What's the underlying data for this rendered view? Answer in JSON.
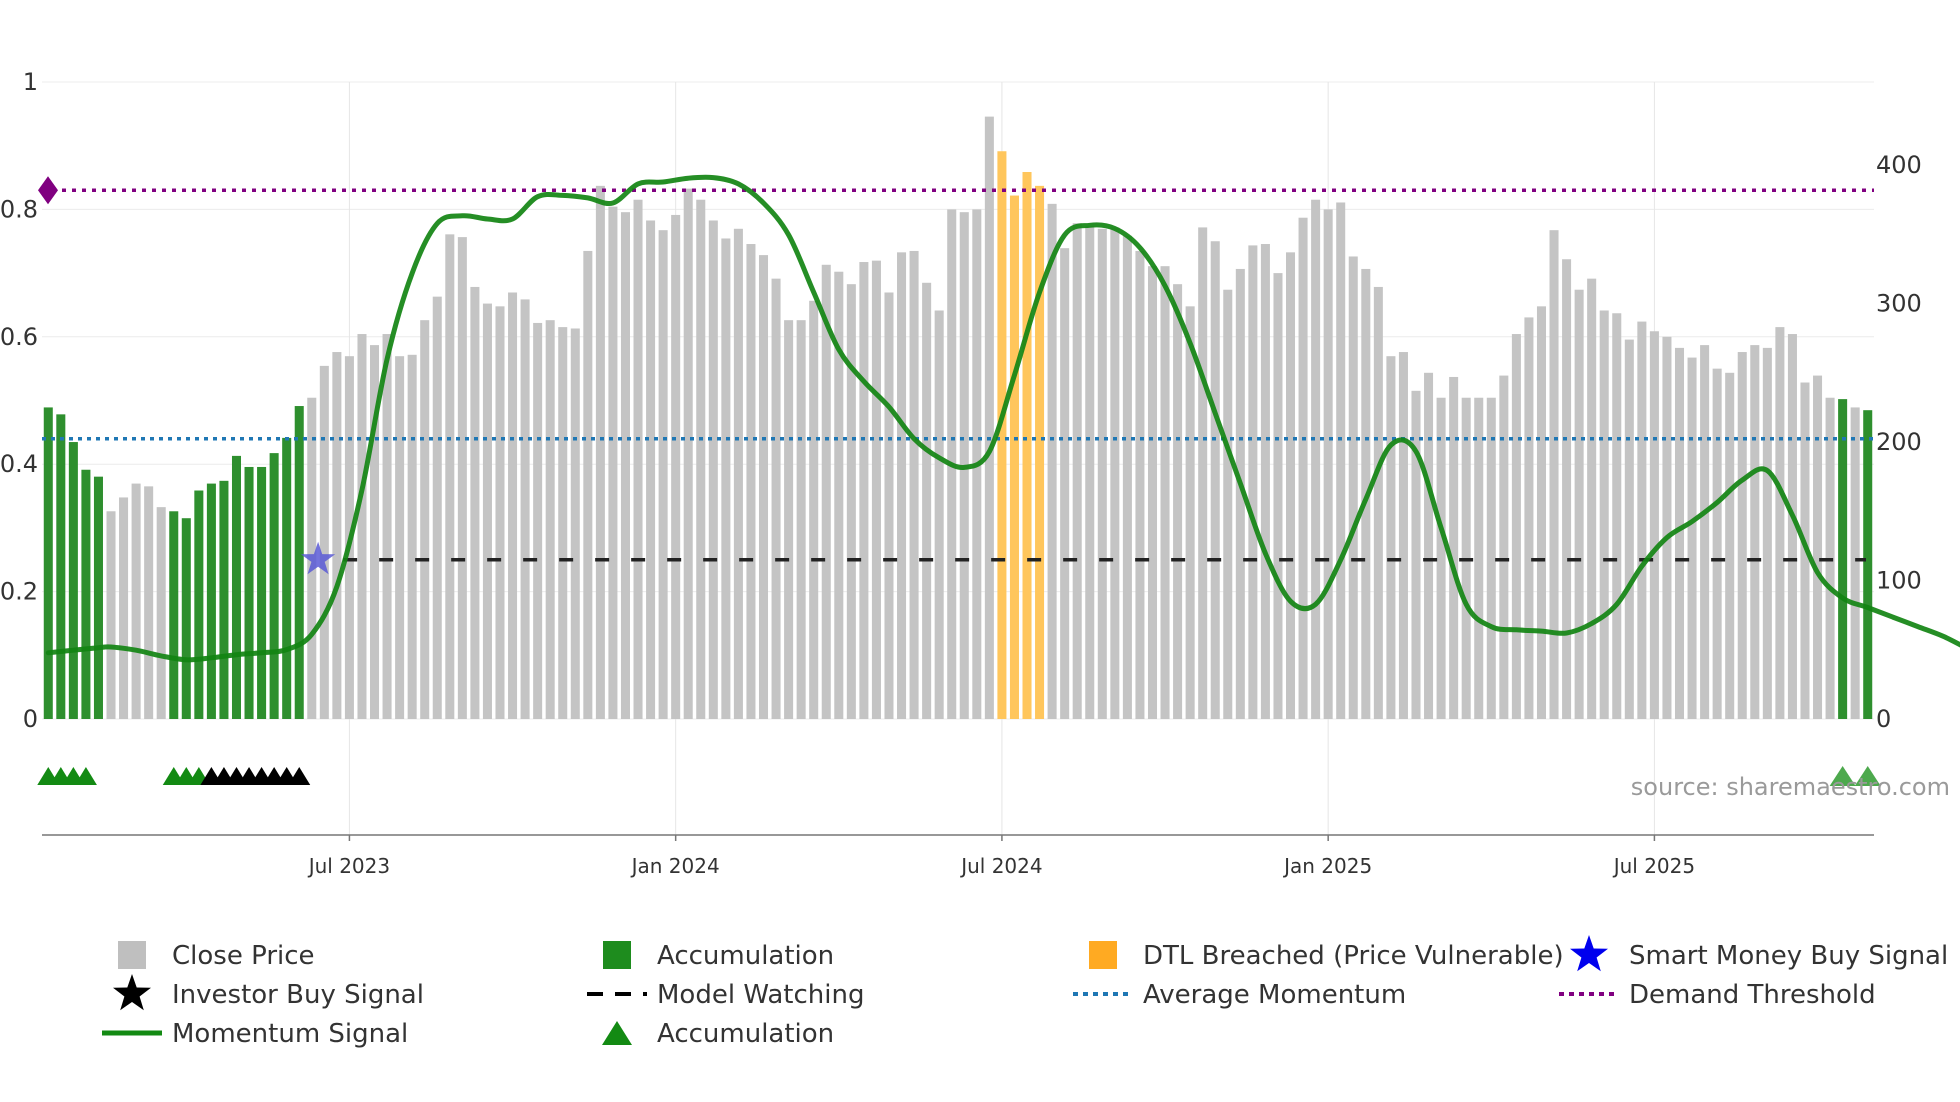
{
  "chart_data": {
    "type": "bar",
    "title": "",
    "source_text": "source: sharemaestro.com",
    "left_axis": {
      "ticks": [
        0,
        0.2,
        0.4,
        0.6,
        0.8,
        1
      ],
      "labels": [
        "0",
        "0.2",
        "0.4",
        "0.6",
        "0.8",
        "1"
      ],
      "range": [
        0,
        1.0
      ]
    },
    "right_axis": {
      "ticks": [
        0,
        100,
        200,
        300,
        400
      ],
      "labels": [
        "0",
        "100",
        "200",
        "300",
        "400"
      ],
      "range": [
        0,
        460
      ]
    },
    "x_ticks": [
      {
        "label": "Jul 2023",
        "index": 24
      },
      {
        "label": "Jan 2024",
        "index": 50
      },
      {
        "label": "Jul 2024",
        "index": 76
      },
      {
        "label": "Jan 2025",
        "index": 102
      },
      {
        "label": "Jul 2025",
        "index": 128
      }
    ],
    "close_price": [
      225,
      220,
      200,
      180,
      175,
      150,
      160,
      170,
      168,
      153,
      150,
      145,
      165,
      170,
      172,
      190,
      182,
      182,
      192,
      203,
      226,
      232,
      255,
      265,
      262,
      278,
      270,
      278,
      262,
      263,
      288,
      305,
      350,
      348,
      312,
      300,
      298,
      308,
      303,
      286,
      288,
      283,
      282,
      338,
      385,
      370,
      366,
      375,
      360,
      353,
      364,
      383,
      375,
      360,
      347,
      354,
      343,
      335,
      318,
      288,
      288,
      302,
      328,
      323,
      314,
      330,
      331,
      308,
      337,
      338,
      315,
      295,
      368,
      366,
      368,
      435,
      410,
      378,
      395,
      385,
      372,
      340,
      358,
      356,
      354,
      355,
      349,
      338,
      327,
      327,
      314,
      298,
      355,
      345,
      310,
      325,
      342,
      343,
      322,
      337,
      362,
      375,
      368,
      373,
      334,
      325,
      312,
      262,
      265,
      237,
      250,
      232,
      247,
      232,
      232,
      232,
      248,
      278,
      290,
      298,
      353,
      332,
      310,
      318,
      295,
      293,
      274,
      287,
      280,
      276,
      268,
      261,
      270,
      253,
      250,
      265,
      270,
      268,
      283,
      278,
      243,
      248,
      232,
      231,
      225,
      223
    ],
    "accumulation_bars": [
      0,
      1,
      2,
      3,
      4,
      10,
      11,
      12,
      13,
      14,
      15,
      16,
      17,
      18,
      19,
      20,
      143,
      145
    ],
    "dtl_breached_bars": [
      76,
      77,
      78,
      79
    ],
    "momentum_signal": [
      [
        0,
        0.104
      ],
      [
        2,
        0.108
      ],
      [
        4,
        0.112
      ],
      [
        5,
        0.113
      ],
      [
        7,
        0.108
      ],
      [
        9,
        0.099
      ],
      [
        11,
        0.093
      ],
      [
        13,
        0.096
      ],
      [
        15,
        0.101
      ],
      [
        17,
        0.104
      ],
      [
        19,
        0.109
      ],
      [
        21,
        0.133
      ],
      [
        23,
        0.208
      ],
      [
        25,
        0.36
      ],
      [
        27,
        0.565
      ],
      [
        29,
        0.7
      ],
      [
        31,
        0.778
      ],
      [
        33,
        0.79
      ],
      [
        35,
        0.785
      ],
      [
        37,
        0.785
      ],
      [
        39,
        0.82
      ],
      [
        41,
        0.822
      ],
      [
        43,
        0.818
      ],
      [
        45,
        0.81
      ],
      [
        47,
        0.84
      ],
      [
        49,
        0.843
      ],
      [
        51,
        0.849
      ],
      [
        53,
        0.85
      ],
      [
        55,
        0.84
      ],
      [
        57,
        0.81
      ],
      [
        59,
        0.76
      ],
      [
        61,
        0.67
      ],
      [
        63,
        0.58
      ],
      [
        65,
        0.53
      ],
      [
        67,
        0.49
      ],
      [
        69,
        0.44
      ],
      [
        71,
        0.41
      ],
      [
        73,
        0.395
      ],
      [
        75,
        0.42
      ],
      [
        77,
        0.54
      ],
      [
        79,
        0.67
      ],
      [
        81,
        0.76
      ],
      [
        83,
        0.775
      ],
      [
        85,
        0.77
      ],
      [
        87,
        0.74
      ],
      [
        89,
        0.68
      ],
      [
        91,
        0.59
      ],
      [
        93,
        0.48
      ],
      [
        95,
        0.37
      ],
      [
        97,
        0.26
      ],
      [
        99,
        0.185
      ],
      [
        101,
        0.18
      ],
      [
        103,
        0.25
      ],
      [
        105,
        0.345
      ],
      [
        107,
        0.43
      ],
      [
        109,
        0.42
      ],
      [
        111,
        0.3
      ],
      [
        113,
        0.18
      ],
      [
        115,
        0.145
      ],
      [
        117,
        0.14
      ],
      [
        119,
        0.138
      ],
      [
        121,
        0.135
      ],
      [
        123,
        0.15
      ],
      [
        125,
        0.18
      ],
      [
        127,
        0.24
      ],
      [
        129,
        0.285
      ],
      [
        131,
        0.31
      ],
      [
        133,
        0.34
      ],
      [
        135,
        0.375
      ],
      [
        137,
        0.39
      ],
      [
        139,
        0.32
      ],
      [
        141,
        0.23
      ],
      [
        143,
        0.19
      ],
      [
        145,
        0.175
      ],
      [
        147,
        0.16
      ],
      [
        149,
        0.145
      ],
      [
        151,
        0.13
      ],
      [
        153,
        0.11
      ]
    ],
    "average_momentum": 0.44,
    "demand_threshold": 0.83,
    "model_watching": {
      "value": 0.25,
      "start_index": 23.5
    },
    "smart_money_buy_signal": {
      "index": 21.5,
      "value": 0.25
    },
    "accumulation_markers": [
      0,
      1,
      2,
      3,
      10,
      11,
      12
    ],
    "investor_buy_markers": [
      13,
      14,
      15,
      16,
      17,
      18,
      19,
      20
    ],
    "late_accumulation_markers": [
      143,
      145
    ],
    "legend": [
      {
        "label": "Close Price",
        "color": "#bfbfbf",
        "symbol": "square"
      },
      {
        "label": "Accumulation",
        "color": "#1e8c1e",
        "symbol": "square"
      },
      {
        "label": "DTL Breached (Price Vulnerable)",
        "color": "#ffaa22",
        "symbol": "square"
      },
      {
        "label": "Smart Money Buy Signal",
        "color": "#0000ee",
        "symbol": "star"
      },
      {
        "label": "Investor Buy Signal",
        "color": "#000000",
        "symbol": "star"
      },
      {
        "label": "Model Watching",
        "color": "#000000",
        "symbol": "dash"
      },
      {
        "label": "Average Momentum",
        "color": "#1f77b4",
        "symbol": "dot"
      },
      {
        "label": "Demand Threshold",
        "color": "#800080",
        "symbol": "dot"
      },
      {
        "label": "Momentum Signal",
        "color": "#138a13",
        "symbol": "line"
      },
      {
        "label": "Accumulation",
        "color": "#138a13",
        "symbol": "triangle"
      }
    ]
  }
}
